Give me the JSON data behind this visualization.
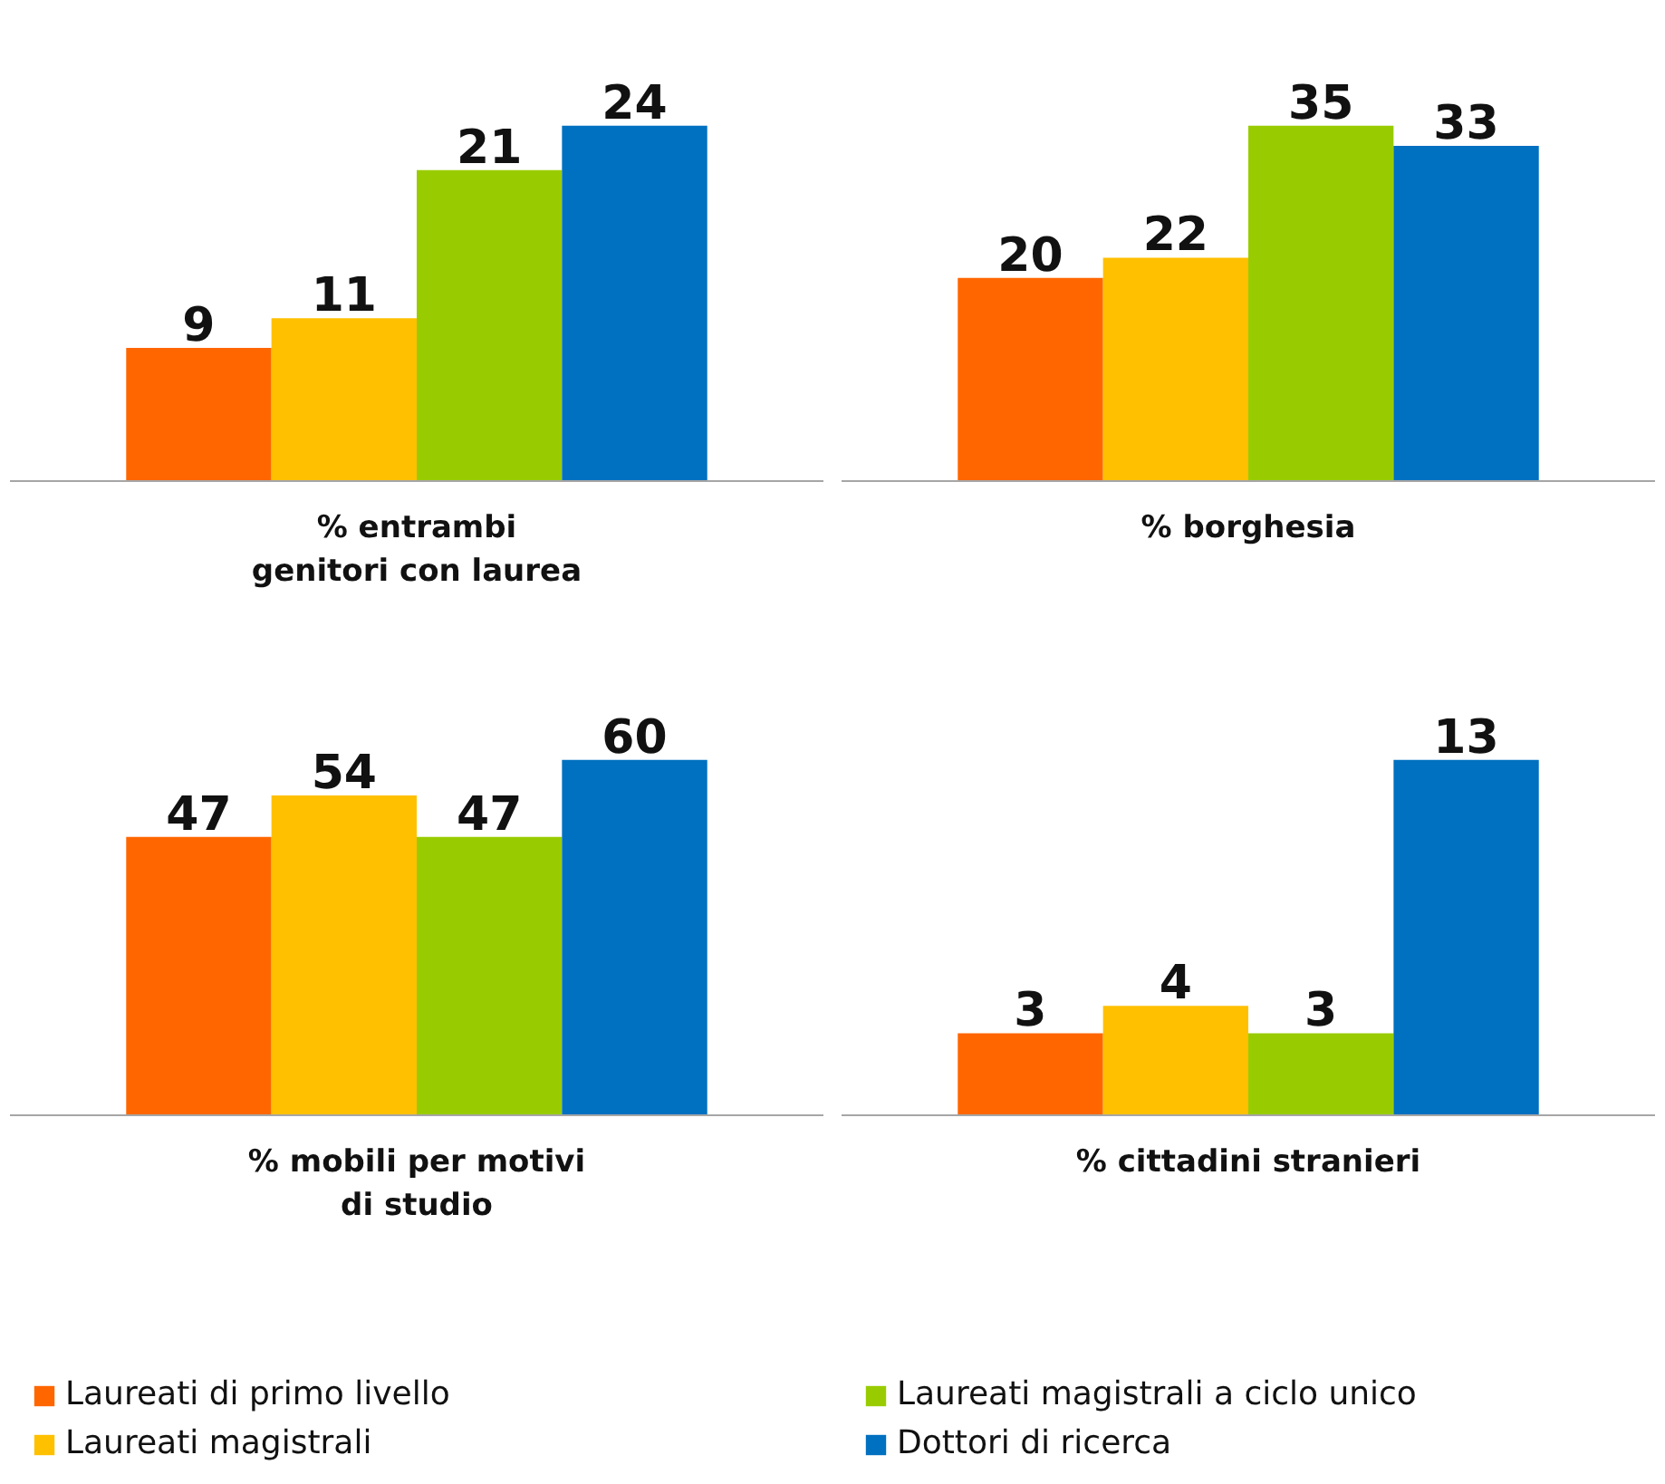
{
  "chart_data": [
    {
      "type": "bar",
      "xlabel": "% entrambi\ngenitori con laurea",
      "categories": [
        null
      ],
      "data_labels": true,
      "grid": false,
      "series": [
        {
          "color": "#ff6600",
          "values": [
            9
          ]
        },
        {
          "color": "#ffc000",
          "values": [
            11
          ]
        },
        {
          "color": "#99cc00",
          "values": [
            21
          ]
        },
        {
          "color": "#0070c0",
          "values": [
            24
          ]
        }
      ]
    },
    {
      "type": "bar",
      "xlabel": "% borghesia",
      "categories": [
        null
      ],
      "data_labels": true,
      "grid": false,
      "series": [
        {
          "color": "#ff6600",
          "values": [
            20
          ]
        },
        {
          "color": "#ffc000",
          "values": [
            22
          ]
        },
        {
          "color": "#99cc00",
          "values": [
            35
          ]
        },
        {
          "color": "#0070c0",
          "values": [
            33
          ]
        }
      ]
    },
    {
      "type": "bar",
      "xlabel": "% mobili per motivi\ndi studio",
      "categories": [
        null
      ],
      "data_labels": true,
      "grid": false,
      "legend": "bottom",
      "series": [
        {
          "name": "Laureati di primo livello",
          "color": "#ff6600",
          "values": [
            47
          ]
        },
        {
          "name": "Laureati magistrali",
          "color": "#ffc000",
          "values": [
            54
          ]
        },
        {
          "color": "#99cc00",
          "values": [
            47
          ]
        },
        {
          "color": "#0070c0",
          "values": [
            60
          ]
        }
      ]
    },
    {
      "type": "bar",
      "xlabel": "% cittadini stranieri",
      "categories": [
        null
      ],
      "data_labels": true,
      "grid": false,
      "legend": "bottom",
      "series": [
        {
          "color": "#ff6600",
          "values": [
            3
          ]
        },
        {
          "color": "#ffc000",
          "values": [
            4
          ]
        },
        {
          "name": "Laureati magistrali a ciclo unico",
          "color": "#99cc00",
          "values": [
            3
          ]
        },
        {
          "name": "Dottori di ricerca",
          "color": "#0070c0",
          "values": [
            13
          ]
        }
      ]
    }
  ]
}
